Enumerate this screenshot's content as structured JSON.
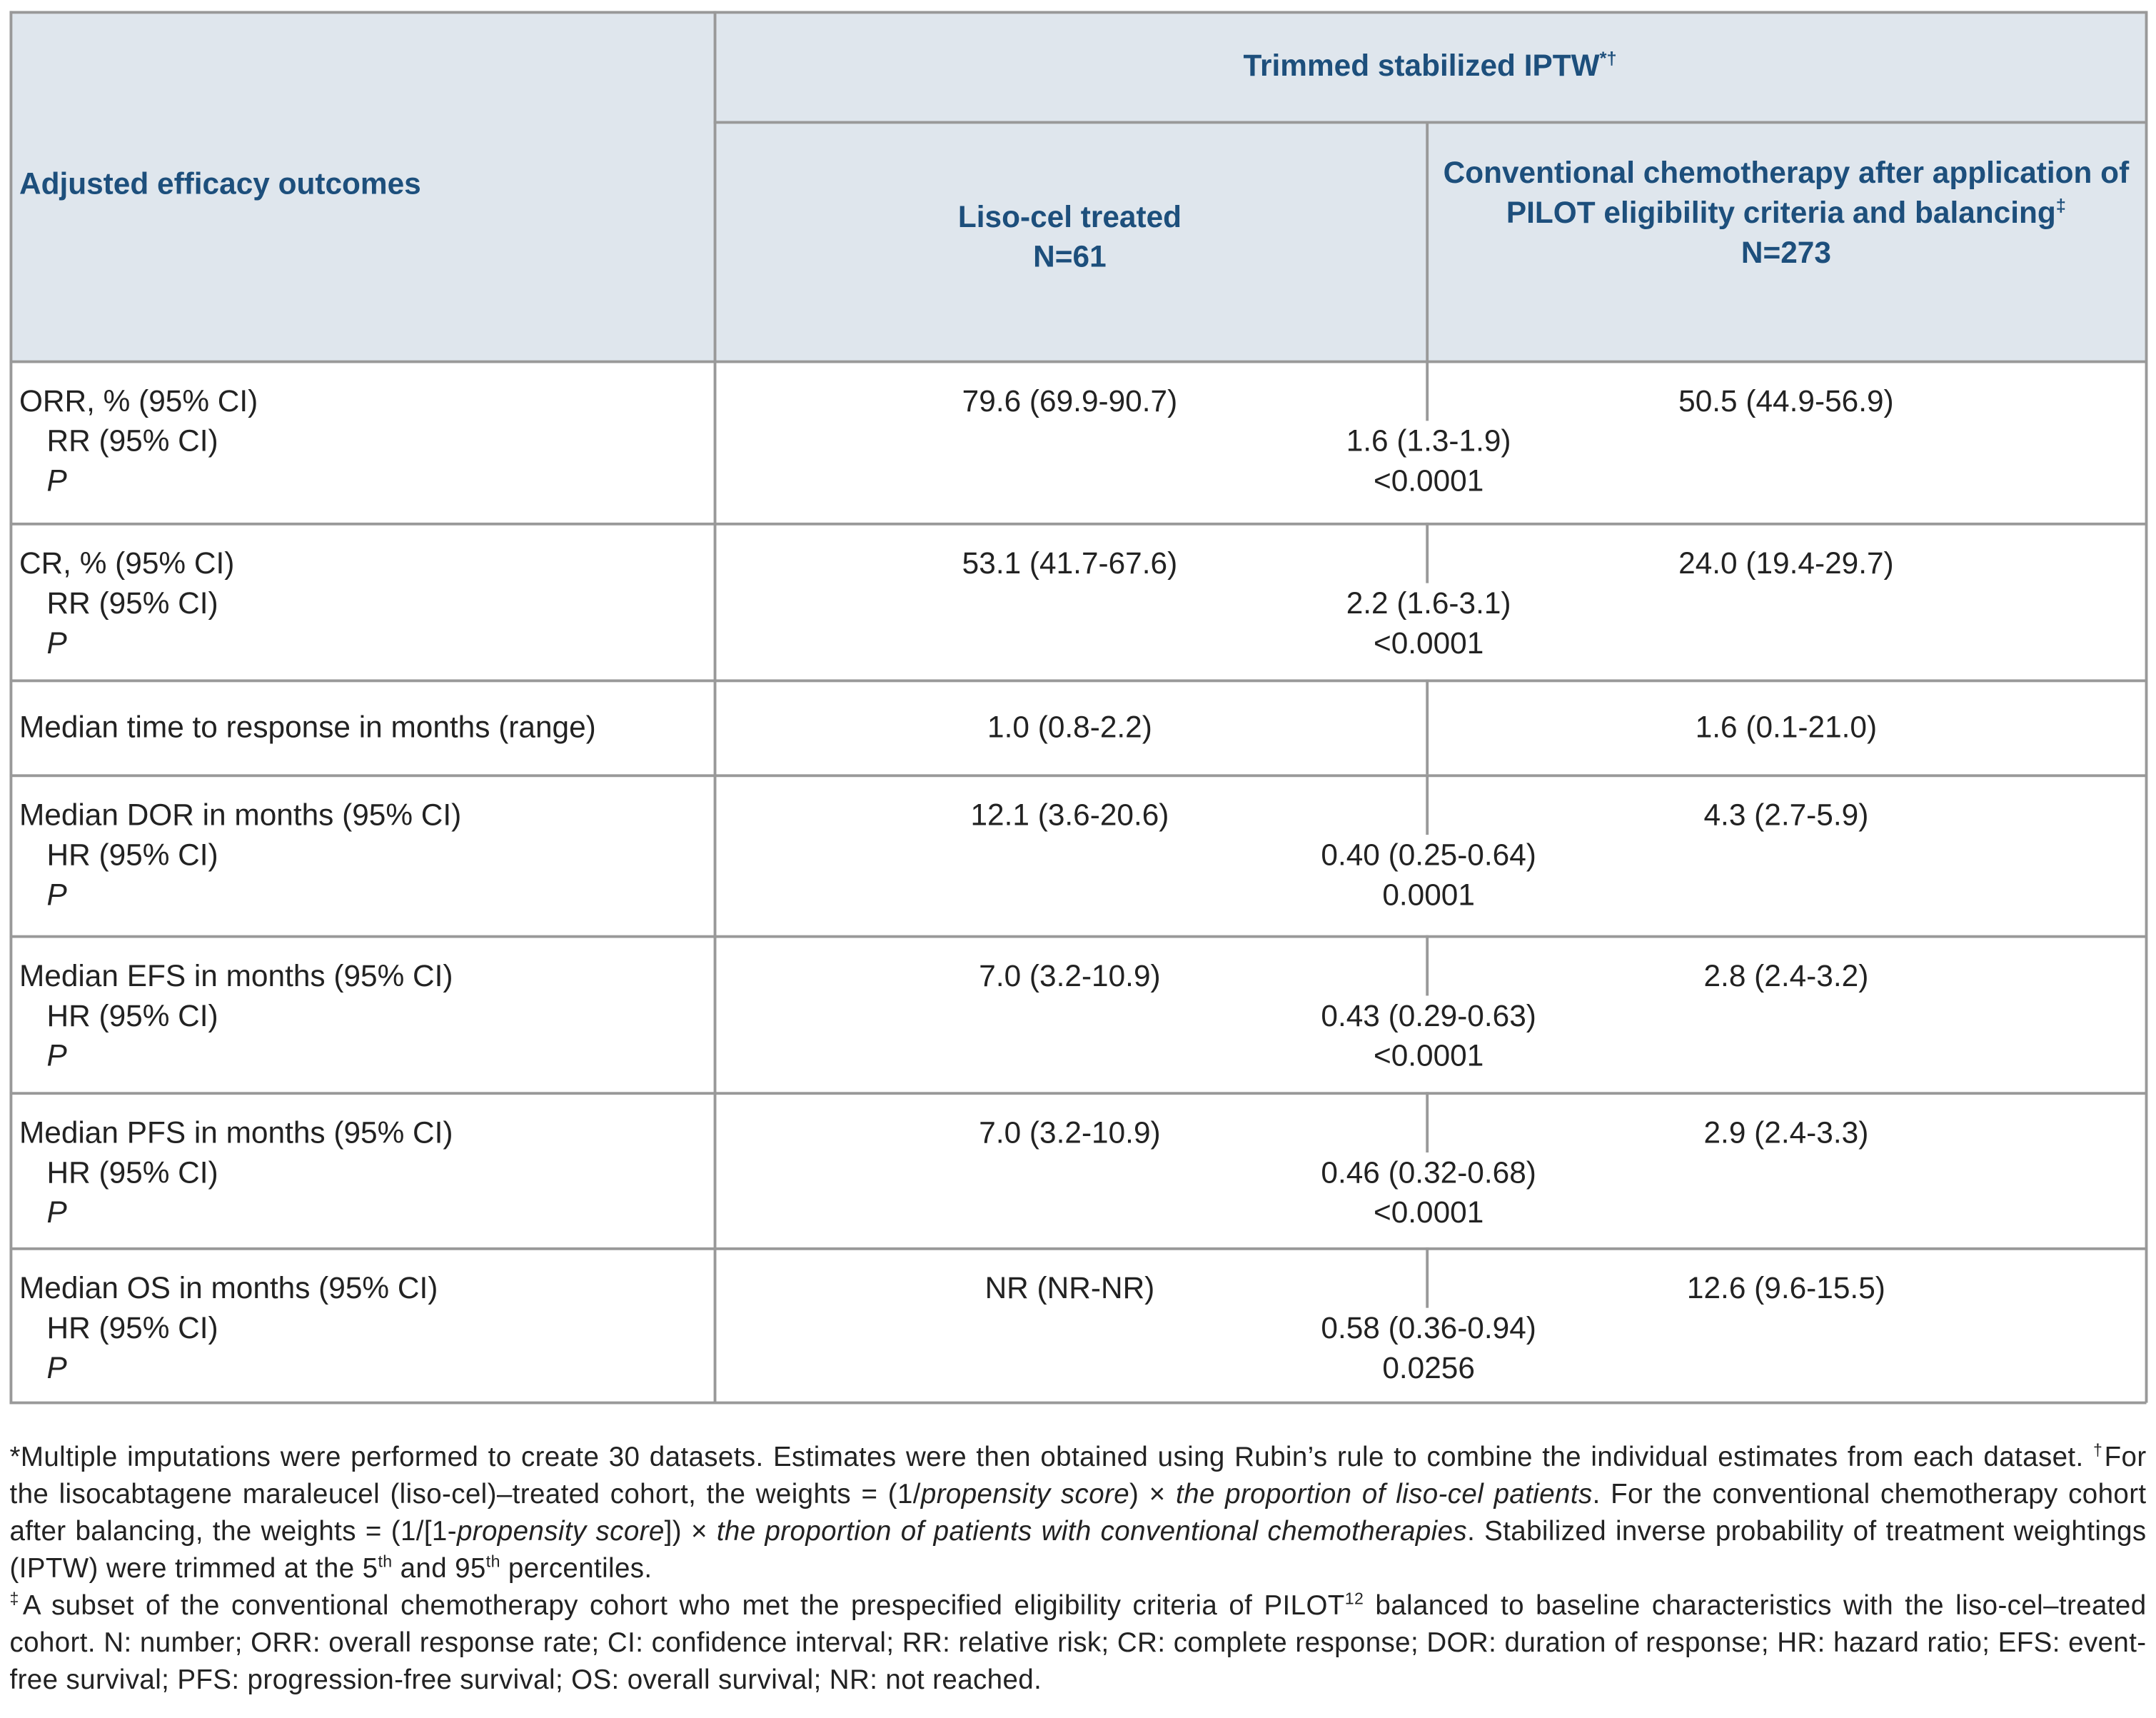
{
  "table": {
    "header": {
      "row_label": "Adjusted efficacy outcomes",
      "group": "Trimmed stabilized IPTW",
      "group_note": "*†",
      "columns": [
        {
          "name": "Liso-cel treated",
          "n": "N=61"
        },
        {
          "name": "Conventional chemotherapy after application of PILOT eligibility criteria and balancing",
          "note": "‡",
          "n": "N=273"
        }
      ]
    },
    "rows": [
      {
        "labels": [
          "ORR, % (95% CI)",
          "RR (95% CI)",
          "P"
        ],
        "liso": "79.6 (69.9-90.7)",
        "chemo": "50.5 (44.9-56.9)",
        "ratio": "1.6 (1.3-1.9)",
        "p": "<0.0001"
      },
      {
        "labels": [
          "CR, % (95% CI)",
          "RR (95% CI)",
          "P"
        ],
        "liso": "53.1 (41.7-67.6)",
        "chemo": "24.0 (19.4-29.7)",
        "ratio": "2.2 (1.6-3.1)",
        "p": "<0.0001"
      },
      {
        "labels": [
          "Median time to response in months (range)"
        ],
        "liso": "1.0 (0.8-2.2)",
        "chemo": "1.6 (0.1-21.0)"
      },
      {
        "labels": [
          "Median DOR in months (95% CI)",
          "HR (95% CI)",
          "P"
        ],
        "liso": "12.1 (3.6-20.6)",
        "chemo": "4.3 (2.7-5.9)",
        "ratio": "0.40 (0.25-0.64)",
        "p": "0.0001"
      },
      {
        "labels": [
          "Median EFS in months (95% CI)",
          "HR (95% CI)",
          "P"
        ],
        "liso": "7.0 (3.2-10.9)",
        "chemo": "2.8 (2.4-3.2)",
        "ratio": "0.43 (0.29-0.63)",
        "p": "<0.0001"
      },
      {
        "labels": [
          "Median PFS in months (95% CI)",
          "HR (95% CI)",
          "P"
        ],
        "liso": "7.0 (3.2-10.9)",
        "chemo": "2.9 (2.4-3.3)",
        "ratio": "0.46 (0.32-0.68)",
        "p": "<0.0001"
      },
      {
        "labels": [
          "Median OS in months (95% CI)",
          "HR (95% CI)",
          "P"
        ],
        "liso": "NR (NR-NR)",
        "chemo": "12.6 (9.6-15.5)",
        "ratio": "0.58 (0.36-0.94)",
        "p": "0.0256"
      }
    ]
  },
  "footnotes": [
    "*Multiple imputations were performed to create 30 datasets. Estimates were then obtained using Rubin’s rule to combine the individual estimates from each dataset. ",
    "†",
    "For the lisocabtagene maraleucel (liso-cel)–treated cohort, the weights = (1/",
    "propensity score",
    ") × ",
    "the proportion of liso-cel patients",
    ". For the conventional chemotherapy cohort after balancing, the weights = (1/[1-",
    "propensity score",
    "]) × ",
    "the proportion of patients with conventional chemotherapies",
    ". Stabilized inverse probability of treatment weightings (IPTW) were trimmed at the 5",
    "th",
    " and 95",
    "th",
    " percentiles.",
    "‡",
    "A subset of the conventional chemotherapy cohort who met the prespecified eligibility criteria of PILOT",
    "12",
    " balanced to baseline characteristics with the liso-cel–treated cohort. N: number; ORR: overall response rate; CI: confidence interval; RR: relative risk; CR: complete response; DOR: duration of response; HR: hazard ratio; EFS: event-free survival; PFS: progression-free survival; OS: overall survival; NR: not reached."
  ]
}
